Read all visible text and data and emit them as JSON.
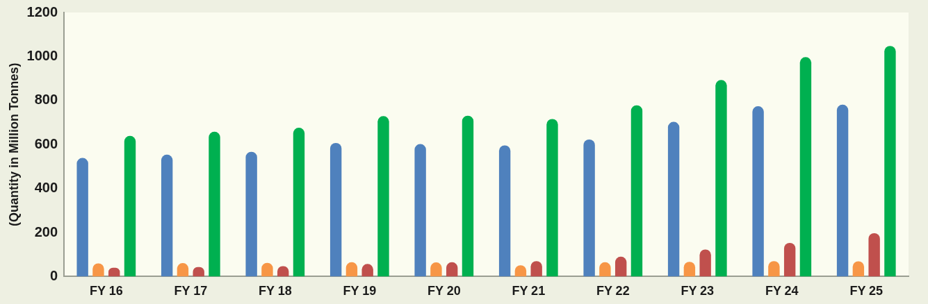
{
  "chart_data": {
    "type": "bar",
    "ylabel": "(Quantity in Million Tonnes)",
    "categories": [
      "FY 16",
      "FY 17",
      "FY 18",
      "FY 19",
      "FY 20",
      "FY 21",
      "FY 22",
      "FY 23",
      "FY 24",
      "FY 25"
    ],
    "series": [
      {
        "color": "#4f81bd",
        "values": [
          539,
          554,
          567,
          607,
          602,
          596,
          623,
          703,
          774,
          781
        ]
      },
      {
        "color": "#f79646",
        "values": [
          60,
          61,
          62,
          65,
          64,
          51,
          65,
          67,
          70,
          69
        ]
      },
      {
        "color": "#c0504d",
        "values": [
          40,
          43,
          47,
          57,
          65,
          70,
          90,
          123,
          153,
          197
        ]
      },
      {
        "color": "#00b050",
        "values": [
          639,
          658,
          676,
          729,
          731,
          716,
          778,
          893,
          997,
          1048
        ]
      }
    ],
    "ylim": [
      0,
      1200
    ],
    "yticks": [
      0,
      200,
      400,
      600,
      800,
      1000,
      1200
    ],
    "grid": false,
    "legend": false
  }
}
